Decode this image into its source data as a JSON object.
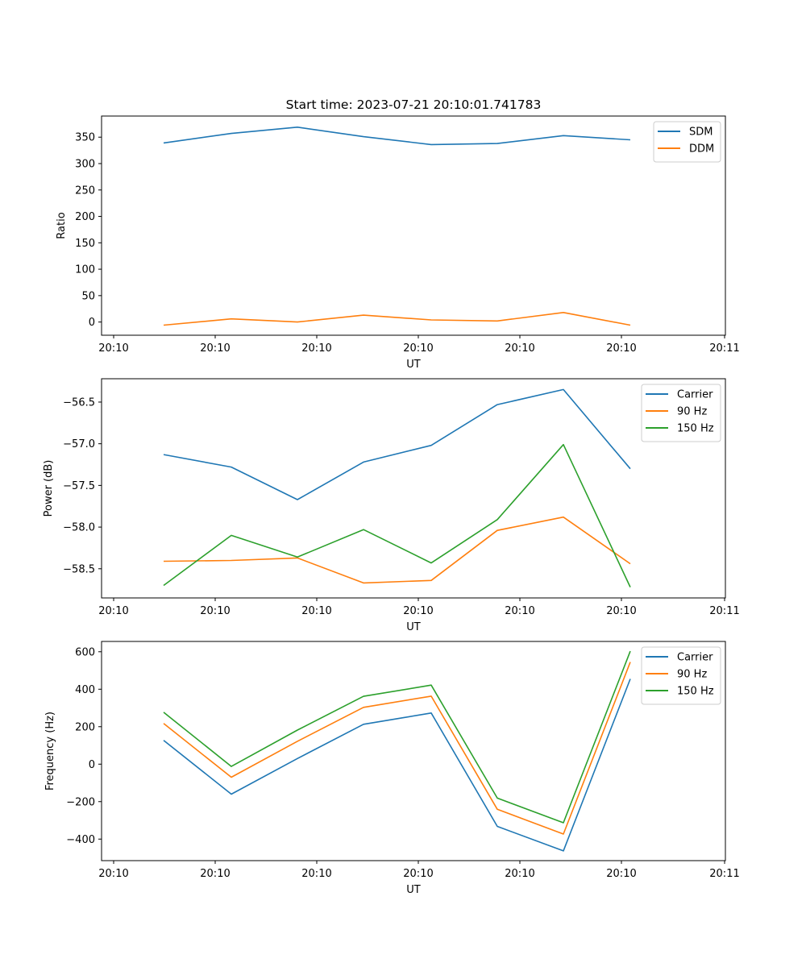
{
  "figure_title": "Start time: 2023-07-21 20:10:01.741783",
  "chart_data": [
    {
      "type": "line",
      "title": "Start time: 2023-07-21 20:10:01.741783",
      "xlabel": "UT",
      "ylabel": "Ratio",
      "x_tick_labels": [
        "20:10",
        "20:10",
        "20:10",
        "20:10",
        "20:10",
        "20:10",
        "20:10",
        "20:11"
      ],
      "ylim": [
        -25,
        390
      ],
      "yticks": [
        0,
        50,
        100,
        150,
        200,
        250,
        300,
        350
      ],
      "y_tick_labels": [
        "0",
        "50",
        "100",
        "150",
        "200",
        "250",
        "300",
        "350"
      ],
      "legend_position": "top-right",
      "series": [
        {
          "name": "SDM",
          "color": "#1f77b4",
          "values": [
            339,
            357,
            369,
            351,
            336,
            338,
            353,
            345
          ]
        },
        {
          "name": "DDM",
          "color": "#ff7f0e",
          "values": [
            -6,
            6,
            0,
            13,
            4,
            2,
            18,
            -6
          ]
        }
      ]
    },
    {
      "type": "line",
      "title": "",
      "xlabel": "UT",
      "ylabel": "Power (dB)",
      "x_tick_labels": [
        "20:10",
        "20:10",
        "20:10",
        "20:10",
        "20:10",
        "20:10",
        "20:10",
        "20:11"
      ],
      "ylim": [
        -58.85,
        -56.22
      ],
      "yticks": [
        -58.5,
        -58.0,
        -57.5,
        -57.0,
        -56.5
      ],
      "y_tick_labels": [
        "−58.5",
        "−58.0",
        "−57.5",
        "−57.0",
        "−56.5"
      ],
      "legend_position": "top-right",
      "series": [
        {
          "name": "Carrier",
          "color": "#1f77b4",
          "values": [
            -57.13,
            -57.28,
            -57.67,
            -57.22,
            -57.02,
            -56.53,
            -56.35,
            -57.3
          ]
        },
        {
          "name": "90 Hz",
          "color": "#ff7f0e",
          "values": [
            -58.41,
            -58.4,
            -58.37,
            -58.67,
            -58.64,
            -58.04,
            -57.88,
            -58.44
          ]
        },
        {
          "name": "150 Hz",
          "color": "#2ca02c",
          "values": [
            -58.7,
            -58.1,
            -58.36,
            -58.03,
            -58.43,
            -57.91,
            -57.01,
            -58.72
          ]
        }
      ]
    },
    {
      "type": "line",
      "title": "",
      "xlabel": "UT",
      "ylabel": "Frequency (Hz)",
      "x_tick_labels": [
        "20:10",
        "20:10",
        "20:10",
        "20:10",
        "20:10",
        "20:10",
        "20:10",
        "20:11"
      ],
      "ylim": [
        -515,
        655
      ],
      "yticks": [
        -400,
        -200,
        0,
        200,
        400,
        600
      ],
      "y_tick_labels": [
        "−400",
        "−200",
        "0",
        "200",
        "400",
        "600"
      ],
      "legend_position": "top-right",
      "series": [
        {
          "name": "Carrier",
          "color": "#1f77b4",
          "values": [
            127,
            -160,
            30,
            213,
            273,
            -332,
            -463,
            455
          ]
        },
        {
          "name": "90 Hz",
          "color": "#ff7f0e",
          "values": [
            217,
            -70,
            122,
            303,
            363,
            -241,
            -373,
            545
          ]
        },
        {
          "name": "150 Hz",
          "color": "#2ca02c",
          "values": [
            277,
            -12,
            182,
            362,
            422,
            -181,
            -313,
            603
          ]
        }
      ]
    }
  ]
}
